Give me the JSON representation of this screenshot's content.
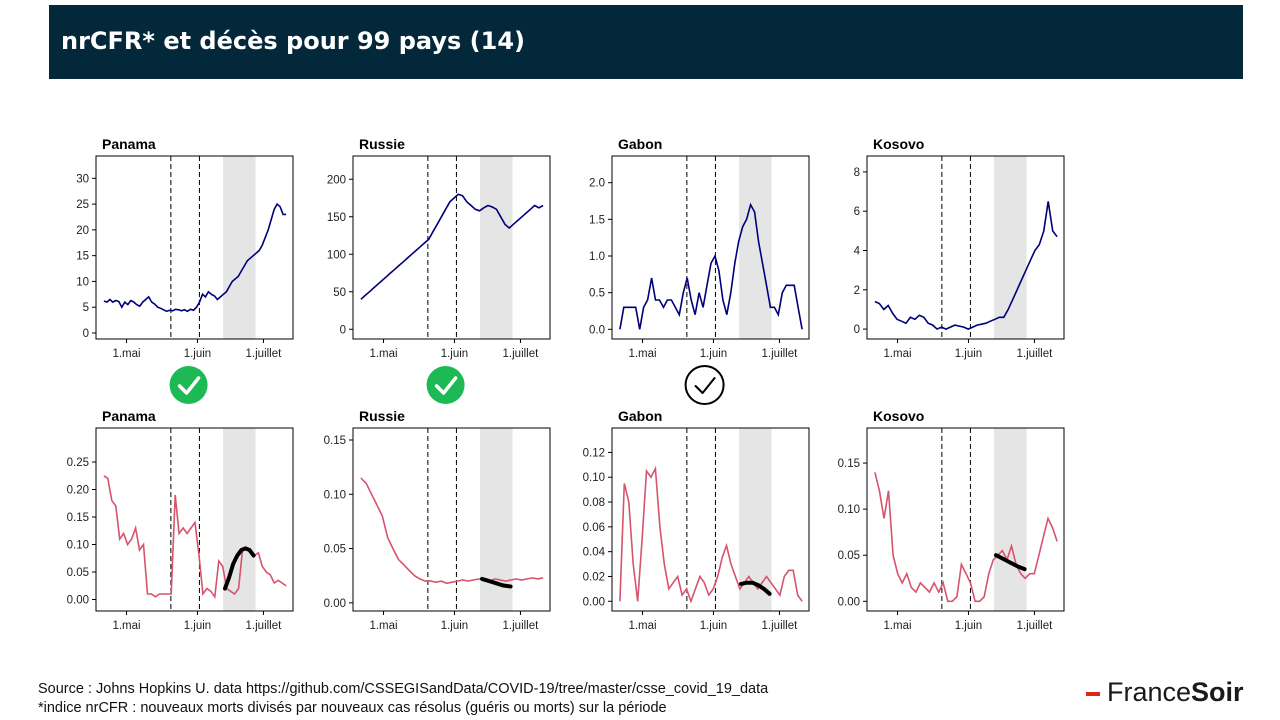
{
  "header": {
    "title": "nrCFR* et décès pour 99 pays (14)"
  },
  "footer": {
    "source": "Source : Johns Hopkins U. data https://github.com/CSSEGISandData/COVID-19/tree/master/csse_covid_19_data",
    "note": "*indice nrCFR : nouveaux morts divisés par nouveaux cas résolus (guéris ou morts) sur la période"
  },
  "brand": {
    "part1": "France",
    "part2": "Soir",
    "accent": "#e2231a"
  },
  "colors": {
    "nrcfr_line": "#00007a",
    "deaths_line": "#d6546e",
    "fit_line": "#000000",
    "shade": "#e5e5e5",
    "check_green": "#1db954"
  },
  "x_axis": {
    "ticks": [
      "1.mai",
      "1.juin",
      "1.juillet"
    ],
    "dashed_lines": [
      "mid-May",
      "1.juin"
    ],
    "shaded_range": [
      "mid-June",
      "end-June"
    ]
  },
  "markers": [
    {
      "country": "Panama",
      "icon": "check-green-icon"
    },
    {
      "country": "Russie",
      "icon": "check-green-icon"
    },
    {
      "country": "Gabon",
      "icon": "check-outline-icon"
    },
    {
      "country": "Kosovo",
      "icon": ""
    }
  ],
  "chart_data": [
    {
      "type": "line",
      "title": "Panama",
      "ylim": [
        0,
        32
      ],
      "yticks": [
        "0",
        "5",
        "10",
        "15",
        "20",
        "25",
        "30"
      ],
      "x_index_range": [
        0,
        80
      ],
      "values": [
        6.2,
        6.0,
        6.5,
        6.0,
        6.3,
        6.1,
        5.0,
        6.0,
        5.5,
        6.3,
        6.0,
        5.5,
        5.2,
        6.0,
        6.5,
        7.0,
        6.0,
        5.6,
        5.0,
        4.8,
        4.5,
        4.2,
        4.4,
        4.3,
        4.6,
        4.5,
        4.3,
        4.5,
        4.2,
        4.6,
        4.4,
        5.0,
        6.0,
        7.5,
        7.0,
        8.0,
        7.5,
        7.2,
        6.5,
        7.0,
        7.5,
        8.0,
        9.0,
        10.0,
        10.5,
        11.0,
        12.0,
        13.0,
        14.0,
        14.5,
        15.0,
        15.5,
        16.0,
        17.0,
        18.5,
        20.0,
        22.0,
        24.0,
        25.0,
        24.5,
        23.0,
        23.0
      ]
    },
    {
      "type": "line",
      "title": "Russie",
      "ylim": [
        -5,
        215
      ],
      "yticks": [
        "0",
        "50",
        "100",
        "150",
        "200"
      ],
      "x_index_range": [
        0,
        80
      ],
      "values": [
        40,
        45,
        50,
        55,
        60,
        65,
        70,
        75,
        80,
        85,
        90,
        95,
        100,
        105,
        110,
        115,
        120,
        130,
        140,
        150,
        160,
        170,
        175,
        180,
        178,
        170,
        165,
        160,
        158,
        162,
        165,
        163,
        160,
        150,
        140,
        135,
        140,
        145,
        150,
        155,
        160,
        165,
        162,
        165
      ]
    },
    {
      "type": "line",
      "title": "Gabon",
      "ylim": [
        -0.05,
        2.2
      ],
      "yticks": [
        "0.0",
        "0.5",
        "1.0",
        "1.5",
        "2.0"
      ],
      "x_index_range": [
        0,
        80
      ],
      "values": [
        0.0,
        0.3,
        0.3,
        0.3,
        0.3,
        0.0,
        0.3,
        0.4,
        0.7,
        0.4,
        0.4,
        0.3,
        0.4,
        0.4,
        0.3,
        0.2,
        0.5,
        0.7,
        0.4,
        0.2,
        0.5,
        0.3,
        0.6,
        0.9,
        1.0,
        0.8,
        0.4,
        0.2,
        0.5,
        0.9,
        1.2,
        1.4,
        1.5,
        1.7,
        1.6,
        1.2,
        0.9,
        0.6,
        0.3,
        0.3,
        0.2,
        0.5,
        0.6,
        0.6,
        0.6,
        0.3,
        0.0
      ]
    },
    {
      "type": "line",
      "title": "Kosovo",
      "ylim": [
        -0.2,
        8.2
      ],
      "yticks": [
        "0",
        "2",
        "4",
        "6",
        "8"
      ],
      "x_index_range": [
        0,
        80
      ],
      "values": [
        1.4,
        1.3,
        1.0,
        1.2,
        0.8,
        0.5,
        0.4,
        0.3,
        0.6,
        0.5,
        0.7,
        0.6,
        0.3,
        0.2,
        0.0,
        0.1,
        0.0,
        0.1,
        0.2,
        0.15,
        0.1,
        0.0,
        0.1,
        0.2,
        0.25,
        0.3,
        0.4,
        0.5,
        0.6,
        0.6,
        1.0,
        1.5,
        2.0,
        2.5,
        3.0,
        3.5,
        4.0,
        4.3,
        5.0,
        6.5,
        5.0,
        4.7
      ]
    },
    {
      "type": "line",
      "title": "Panama",
      "ylim": [
        -0.01,
        0.29
      ],
      "yticks": [
        "0.00",
        "0.05",
        "0.10",
        "0.15",
        "0.20",
        "0.25"
      ],
      "x_index_range": [
        0,
        80
      ],
      "values": [
        0.225,
        0.22,
        0.18,
        0.17,
        0.11,
        0.12,
        0.1,
        0.11,
        0.13,
        0.09,
        0.1,
        0.01,
        0.01,
        0.005,
        0.01,
        0.01,
        0.01,
        0.01,
        0.19,
        0.12,
        0.13,
        0.12,
        0.13,
        0.14,
        0.08,
        0.01,
        0.02,
        0.015,
        0.005,
        0.07,
        0.06,
        0.02,
        0.015,
        0.01,
        0.02,
        0.09,
        0.095,
        0.09,
        0.08,
        0.085,
        0.06,
        0.05,
        0.045,
        0.03,
        0.035,
        0.03,
        0.025
      ],
      "fit": [
        0.02,
        0.04,
        0.065,
        0.08,
        0.09,
        0.093,
        0.09,
        0.08
      ]
    },
    {
      "type": "line",
      "title": "Russie",
      "ylim": [
        -0.002,
        0.15
      ],
      "yticks": [
        "0.00",
        "0.05",
        "0.10",
        "0.15"
      ],
      "x_index_range": [
        0,
        80
      ],
      "values": [
        0.115,
        0.11,
        0.1,
        0.09,
        0.08,
        0.06,
        0.05,
        0.04,
        0.035,
        0.03,
        0.025,
        0.022,
        0.02,
        0.02,
        0.019,
        0.02,
        0.018,
        0.019,
        0.02,
        0.021,
        0.02,
        0.021,
        0.022,
        0.021,
        0.02,
        0.022,
        0.021,
        0.02,
        0.021,
        0.022,
        0.021,
        0.022,
        0.023,
        0.022,
        0.023
      ],
      "fit": [
        0.022,
        0.02,
        0.018,
        0.016,
        0.015
      ]
    },
    {
      "type": "line",
      "title": "Gabon",
      "ylim": [
        -0.003,
        0.13
      ],
      "yticks": [
        "0.00",
        "0.02",
        "0.04",
        "0.06",
        "0.08",
        "0.10",
        "0.12"
      ],
      "x_index_range": [
        0,
        80
      ],
      "values": [
        0.0,
        0.095,
        0.08,
        0.03,
        0.0,
        0.05,
        0.105,
        0.1,
        0.107,
        0.06,
        0.03,
        0.01,
        0.015,
        0.02,
        0.005,
        0.01,
        0.0,
        0.01,
        0.02,
        0.015,
        0.005,
        0.01,
        0.02,
        0.035,
        0.045,
        0.03,
        0.02,
        0.01,
        0.015,
        0.02,
        0.015,
        0.01,
        0.015,
        0.02,
        0.015,
        0.01,
        0.005,
        0.02,
        0.025,
        0.025,
        0.005,
        0.0
      ],
      "fit": [
        0.014,
        0.015,
        0.015,
        0.013,
        0.01,
        0.006
      ]
    },
    {
      "type": "line",
      "title": "Kosovo",
      "ylim": [
        -0.004,
        0.175
      ],
      "yticks": [
        "0.00",
        "0.05",
        "0.10",
        "0.15"
      ],
      "x_index_range": [
        0,
        80
      ],
      "values": [
        0.14,
        0.12,
        0.09,
        0.12,
        0.05,
        0.03,
        0.02,
        0.03,
        0.015,
        0.01,
        0.02,
        0.015,
        0.01,
        0.02,
        0.01,
        0.02,
        0.0,
        0.0,
        0.005,
        0.04,
        0.03,
        0.02,
        0.0,
        0.0,
        0.005,
        0.03,
        0.045,
        0.05,
        0.055,
        0.045,
        0.06,
        0.04,
        0.03,
        0.025,
        0.03,
        0.03,
        0.05,
        0.07,
        0.09,
        0.08,
        0.065
      ],
      "fit": [
        0.05,
        0.046,
        0.042,
        0.038,
        0.035
      ]
    }
  ]
}
